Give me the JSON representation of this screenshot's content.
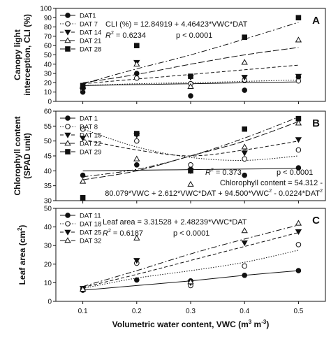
{
  "chart_data": [
    {
      "panel_letter": "A",
      "type": "scatter",
      "ylabel_lines": [
        "Canopy light",
        "interception, CLI (%)"
      ],
      "ylim": [
        0,
        100
      ],
      "yticks": [
        0,
        10,
        20,
        30,
        40,
        50,
        60,
        70,
        80,
        90,
        100
      ],
      "xlim": [
        0.05,
        0.55
      ],
      "x": [
        0.1,
        0.2,
        0.3,
        0.4,
        0.5
      ],
      "grid": false,
      "legend_position": "top-left",
      "annotations": [
        {
          "kind": "text",
          "text": "CLI (%) = 12.84919 + 4.46423*VWC*DAT"
        },
        {
          "kind": "r2",
          "prefix": "R",
          "sup": "2",
          "suffix": " = 0.6234",
          "p": "p < 0.0001"
        }
      ],
      "series": [
        {
          "name": "DAT1",
          "marker": "circle-filled",
          "line": "solid",
          "values": [
            10,
            30,
            6,
            12,
            26
          ],
          "fit": [
            17,
            18,
            19,
            20,
            21
          ]
        },
        {
          "name": "DAT 7",
          "marker": "circle-open",
          "line": "dotted",
          "values": [
            13,
            25,
            19,
            23,
            22
          ],
          "fit": [
            17,
            19,
            20,
            21.5,
            23
          ]
        },
        {
          "name": "DAT 14",
          "marker": "triangle-down-filled",
          "line": "dashed",
          "values": [
            13,
            42,
            26,
            26,
            27
          ],
          "fit": [
            19,
            24,
            29,
            34,
            39
          ]
        },
        {
          "name": "DAT 21",
          "marker": "triangle-up-open",
          "line": "long-dash",
          "values": [
            16,
            40,
            16,
            42,
            66
          ],
          "fit": [
            20,
            29,
            40,
            50,
            58
          ]
        },
        {
          "name": "DAT 28",
          "marker": "square-filled",
          "line": "dash-dot",
          "values": [
            17,
            60,
            27,
            69,
            90
          ],
          "fit": [
            19,
            35,
            50,
            67,
            85
          ]
        }
      ]
    },
    {
      "panel_letter": "B",
      "type": "scatter",
      "ylabel_lines": [
        "Chlorophyll content",
        "(SPAD unit)"
      ],
      "ylim": [
        30,
        60
      ],
      "yticks": [
        30,
        35,
        40,
        45,
        50,
        55,
        60
      ],
      "xlim": [
        0.05,
        0.55
      ],
      "x": [
        0.1,
        0.2,
        0.3,
        0.4,
        0.5
      ],
      "grid": false,
      "legend_position": "top-left",
      "annotations": [
        {
          "kind": "r2",
          "prefix": "R",
          "sup": "2",
          "suffix": " = 0.373",
          "p": "p < 0.0001"
        },
        {
          "kind": "text",
          "text": "Chlorophyll content = 54.312 -"
        },
        {
          "kind": "equation",
          "text": "80.079*VWC + 2.612*VWC*DAT + 94.500*VWC",
          "sup1": "2",
          "middle": " - 0.0224*DAT",
          "sup2": "2"
        }
      ],
      "series": [
        {
          "name": "DAT 1",
          "marker": "circle-filled",
          "line": "solid",
          "values": [
            38.5,
            42,
            40.5,
            38.5,
            41
          ],
          "fit": [
            40,
            40.2,
            40.4,
            40.6,
            40.8
          ]
        },
        {
          "name": "DAT 8",
          "marker": "circle-open",
          "line": "dotted",
          "values": [
            54,
            50,
            42,
            44,
            47
          ],
          "fit": [
            54,
            48,
            44.5,
            43.5,
            45
          ]
        },
        {
          "name": "DAT 15",
          "marker": "triangle-down-filled",
          "line": "dashed",
          "values": [
            51,
            52,
            40,
            46,
            50.5
          ],
          "fit": [
            50.5,
            47,
            45,
            47,
            50
          ]
        },
        {
          "name": "DAT 22",
          "marker": "triangle-up-open",
          "line": "long-dash",
          "values": [
            36.5,
            44,
            35.5,
            48,
            56
          ],
          "fit": [
            37,
            40,
            45,
            50,
            56.5
          ]
        },
        {
          "name": "DAT 29",
          "marker": "square-filled",
          "line": "dash-dot",
          "values": [
            31,
            52.5,
            40,
            54,
            57.5
          ],
          "fit": [
            38,
            40.5,
            45,
            51,
            58
          ]
        }
      ]
    },
    {
      "panel_letter": "C",
      "type": "scatter",
      "ylabel_lines": [
        "Leaf area (cm",
        "2",
        ")"
      ],
      "ylim": [
        0,
        50
      ],
      "yticks": [
        0,
        10,
        20,
        30,
        40,
        50
      ],
      "xlim": [
        0.05,
        0.55
      ],
      "x": [
        0.1,
        0.2,
        0.3,
        0.4,
        0.5
      ],
      "xticks": [
        "0.1",
        "0.2",
        "0.3",
        "0.4",
        "0.5"
      ],
      "xlabel": "Volumetric water content, VWC (m",
      "xlabel_sup1": "3",
      "xlabel_mid": " m",
      "xlabel_sup2": "-3",
      "xlabel_end": ")",
      "grid": false,
      "legend_position": "top-left",
      "annotations": [
        {
          "kind": "text",
          "text": "Leaf area = 3.31528 + 2.48239*VWC*DAT"
        },
        {
          "kind": "r2",
          "prefix": "R",
          "sup": "2",
          "suffix": " = 0.6187",
          "p": "p < 0.0001"
        }
      ],
      "series": [
        {
          "name": "DAT 11",
          "marker": "circle-filled",
          "line": "solid",
          "values": [
            6,
            11.5,
            11,
            14,
            16.5
          ],
          "fit": [
            6,
            8.5,
            11,
            14,
            16.5
          ]
        },
        {
          "name": "DAT 18",
          "marker": "circle-open",
          "line": "dotted",
          "values": [
            6.5,
            20.5,
            8.5,
            19,
            30.5
          ],
          "fit": [
            7,
            12.5,
            16.5,
            21,
            27.5
          ]
        },
        {
          "name": "DAT 25",
          "marker": "triangle-down-filled",
          "line": "dashed",
          "values": [
            7,
            22,
            10,
            31.5,
            37.5
          ],
          "fit": [
            7.5,
            14.5,
            22,
            29.5,
            37
          ]
        },
        {
          "name": "DAT 32",
          "marker": "triangle-up-open",
          "line": "dash-dot",
          "values": [
            6.5,
            34,
            10.5,
            38,
            42
          ],
          "fit": [
            8,
            16.5,
            25.5,
            33.5,
            41
          ]
        }
      ]
    }
  ]
}
